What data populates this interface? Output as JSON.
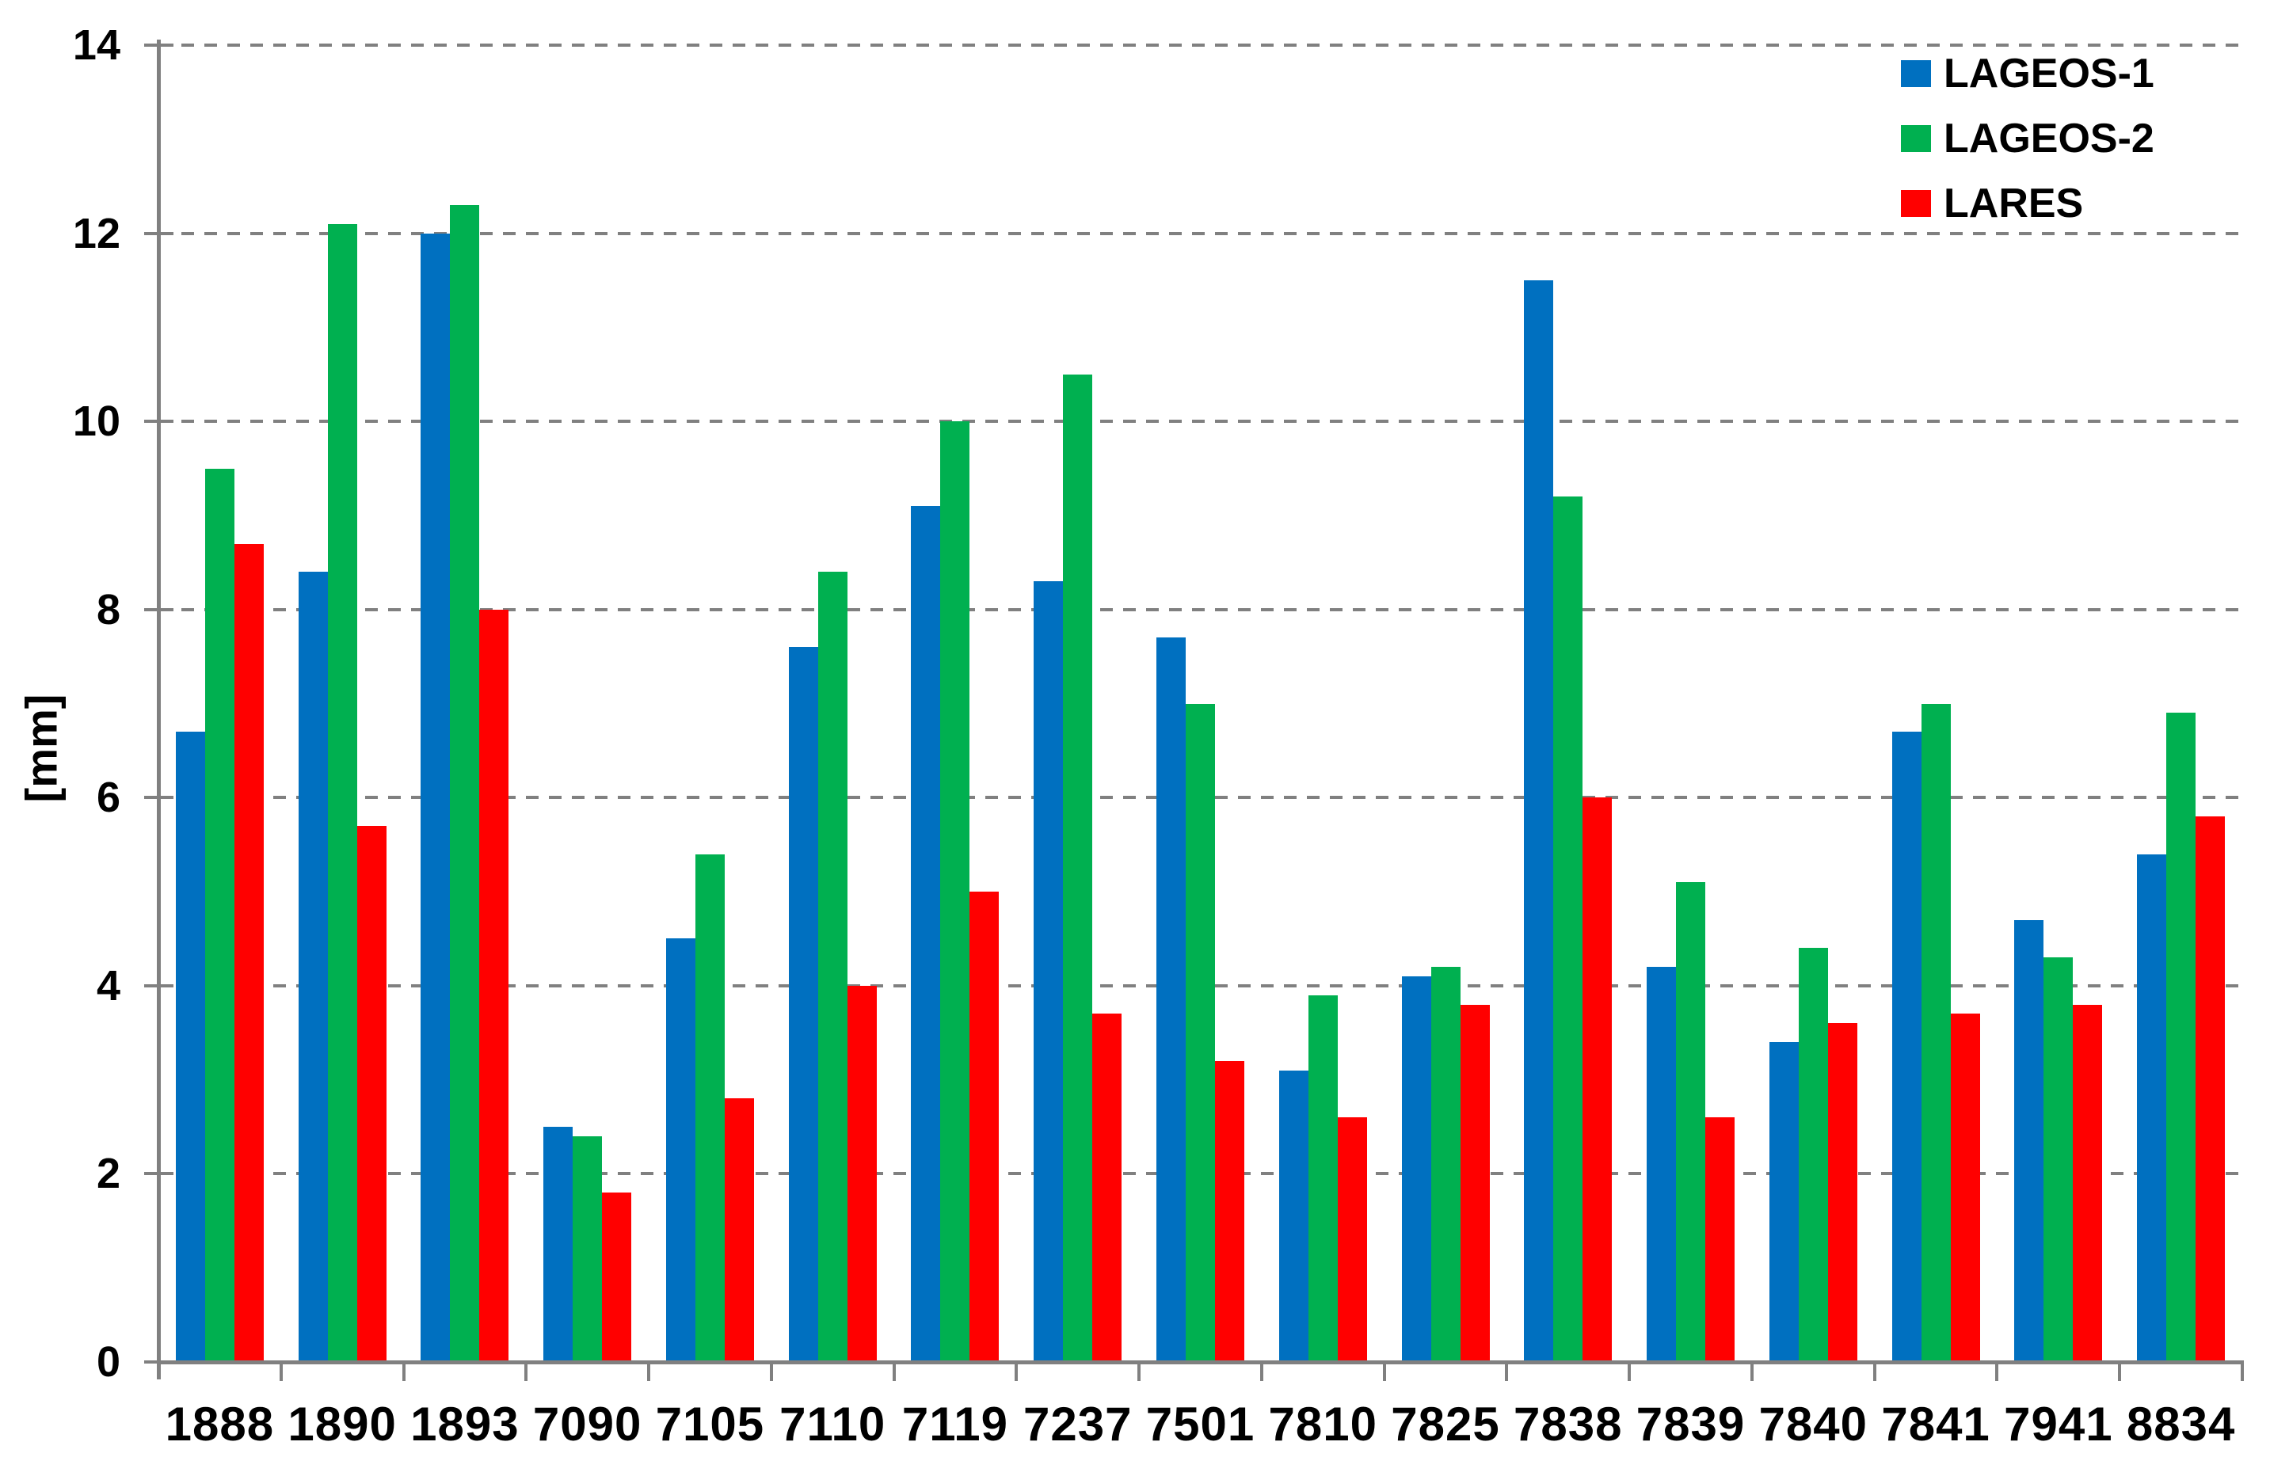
{
  "chart_data": {
    "type": "bar",
    "title": "",
    "xlabel": "",
    "ylabel": "[mm]",
    "ylim": [
      0,
      14
    ],
    "ytick_step": 2,
    "ytick_labels": [
      "0",
      "2",
      "4",
      "6",
      "8",
      "10",
      "12",
      "14"
    ],
    "grid": "horizontal-dashed",
    "legend_position": "top-right",
    "categories": [
      "1888",
      "1890",
      "1893",
      "7090",
      "7105",
      "7110",
      "7119",
      "7237",
      "7501",
      "7810",
      "7825",
      "7838",
      "7839",
      "7840",
      "7841",
      "7941",
      "8834"
    ],
    "series": [
      {
        "name": "LAGEOS-1",
        "color": "#0070C0",
        "values": [
          6.7,
          8.4,
          12.0,
          2.5,
          4.5,
          7.6,
          9.1,
          8.3,
          7.7,
          3.1,
          4.1,
          11.5,
          4.2,
          3.4,
          6.7,
          4.7,
          5.4
        ]
      },
      {
        "name": "LAGEOS-2",
        "color": "#00B050",
        "values": [
          9.5,
          12.1,
          12.3,
          2.4,
          5.4,
          8.4,
          10.0,
          10.5,
          7.0,
          3.9,
          4.2,
          9.2,
          5.1,
          4.4,
          7.0,
          4.3,
          6.9
        ]
      },
      {
        "name": "LARES",
        "color": "#FF0000",
        "values": [
          8.7,
          5.7,
          8.0,
          1.8,
          2.8,
          4.0,
          5.0,
          3.7,
          3.2,
          2.6,
          3.8,
          6.0,
          2.6,
          3.6,
          3.7,
          3.8,
          5.8
        ]
      }
    ]
  },
  "colors": {
    "background": "#FFFFFF",
    "grid": "#808080",
    "axis": "#808080",
    "text": "#000000"
  }
}
